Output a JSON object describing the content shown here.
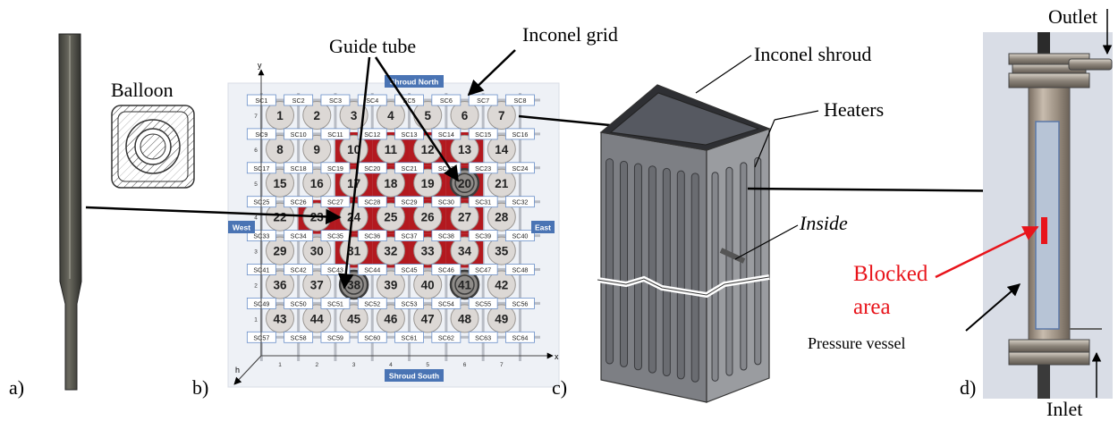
{
  "panels": {
    "a": {
      "letter": "a)",
      "label": "Balloon"
    },
    "b": {
      "letter": "b)",
      "shroud_north": "Shroud North",
      "shroud_south": "Shroud South",
      "west": "West",
      "east": "East",
      "axis_y": "y",
      "axis_x": "x",
      "axis_h": "h",
      "row_numbers": [
        "7",
        "6",
        "5",
        "4",
        "3",
        "2",
        "1"
      ],
      "col_numbers": [
        "1",
        "2",
        "3",
        "4",
        "5",
        "6",
        "7"
      ],
      "subchannels": [
        "SC1",
        "SC2",
        "SC3",
        "SC4",
        "SC5",
        "SC6",
        "SC7",
        "SC8",
        "SC9",
        "SC10",
        "SC11",
        "SC12",
        "SC13",
        "SC14",
        "SC15",
        "SC16",
        "SC17",
        "SC18",
        "SC19",
        "SC20",
        "SC21",
        "SC22",
        "SC23",
        "SC24",
        "SC25",
        "SC26",
        "SC27",
        "SC28",
        "SC29",
        "SC30",
        "SC31",
        "SC32",
        "SC33",
        "SC34",
        "SC35",
        "SC36",
        "SC37",
        "SC38",
        "SC39",
        "SC40",
        "SC41",
        "SC42",
        "SC43",
        "SC44",
        "SC45",
        "SC46",
        "SC47",
        "SC48",
        "SC49",
        "SC50",
        "SC51",
        "SC52",
        "SC53",
        "SC54",
        "SC55",
        "SC56",
        "SC57",
        "SC58",
        "SC59",
        "SC60",
        "SC61",
        "SC62",
        "SC63",
        "SC64"
      ],
      "rods": [
        "1",
        "2",
        "3",
        "4",
        "5",
        "6",
        "7",
        "8",
        "9",
        "10",
        "11",
        "12",
        "13",
        "14",
        "15",
        "16",
        "17",
        "18",
        "19",
        "20",
        "21",
        "22",
        "23",
        "24",
        "25",
        "26",
        "27",
        "28",
        "29",
        "30",
        "31",
        "32",
        "33",
        "34",
        "35",
        "36",
        "37",
        "38",
        "39",
        "40",
        "41",
        "42",
        "43",
        "44",
        "45",
        "46",
        "47",
        "48",
        "49"
      ],
      "guide_tubes": [
        "20",
        "38",
        "41"
      ],
      "callout_guide_tube": "Guide tube",
      "callout_inconel_grid": "Inconel grid",
      "colors": {
        "heater_red": "#b3191f",
        "rod_fill": "#dcd8d5",
        "box_border": "#6a8fc9",
        "label_bg": "#4a74b4"
      }
    },
    "c": {
      "letter": "c)",
      "inconel_shroud": "Inconel shroud",
      "heaters": "Heaters",
      "inside": "Inside"
    },
    "d": {
      "letter": "d)",
      "outlet": "Outlet",
      "inlet": "Inlet",
      "blocked_area": "Blocked area",
      "blocked_line1": "Blocked",
      "blocked_line2": "area",
      "pressure_vessel": "Pressure vessel",
      "colors": {
        "blocked": "#e8141b"
      }
    }
  }
}
